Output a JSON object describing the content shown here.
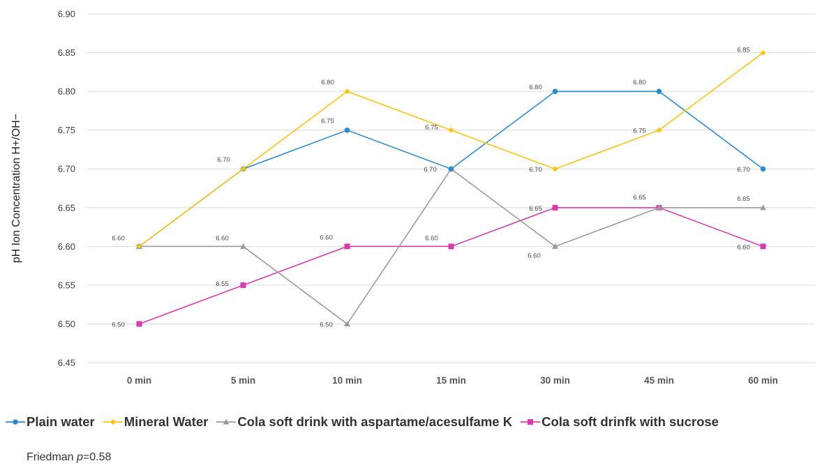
{
  "chart_data": {
    "type": "line",
    "categories": [
      "0 min",
      "5 min",
      "10 min",
      "15 min",
      "30 min",
      "45 min",
      "60 min"
    ],
    "ylabel": "pH Ion Concentration H+/OH−",
    "xlabel": "",
    "ylim": [
      6.45,
      6.9
    ],
    "yticks": [
      "6.45",
      "6.50",
      "6.55",
      "6.60",
      "6.65",
      "6.70",
      "6.75",
      "6.80",
      "6.85",
      "6.90"
    ],
    "grid": "horizontal",
    "legend": "bottom",
    "series": [
      {
        "name": "Plain water",
        "color": "#2E8BC9",
        "marker": "circle",
        "values": [
          6.6,
          6.7,
          6.75,
          6.7,
          6.8,
          6.8,
          6.7
        ],
        "labels": [
          "",
          "",
          "6.75",
          "",
          "6.80",
          "6.80",
          "6.70"
        ]
      },
      {
        "name": "Mineral Water",
        "color": "#F5C518",
        "marker": "diamond",
        "values": [
          6.6,
          6.7,
          6.8,
          6.75,
          6.7,
          6.75,
          6.85
        ],
        "labels": [
          "",
          "6.70",
          "6.80",
          "6.75",
          "6.70",
          "6.75",
          "6.85"
        ]
      },
      {
        "name": "Cola soft drink with aspartame/acesulfame K",
        "color": "#9B9B9B",
        "marker": "triangle",
        "values": [
          6.6,
          6.6,
          6.5,
          6.7,
          6.6,
          6.65,
          6.65
        ],
        "labels": [
          "6.60",
          "6.60",
          "6.50",
          "6.70",
          "6.60",
          "6.65",
          "6.65"
        ]
      },
      {
        "name": "Cola soft drinfk with sucrose",
        "color": "#D63DAA",
        "marker": "square",
        "values": [
          6.5,
          6.55,
          6.6,
          6.6,
          6.65,
          6.65,
          6.6
        ],
        "labels": [
          "6.50",
          "6.55",
          "6.60",
          "6.60",
          "6.65",
          "",
          "6.60"
        ]
      }
    ]
  },
  "footnote": {
    "prefix": "Friedman ",
    "var": "p",
    "rest": "=0.58"
  }
}
